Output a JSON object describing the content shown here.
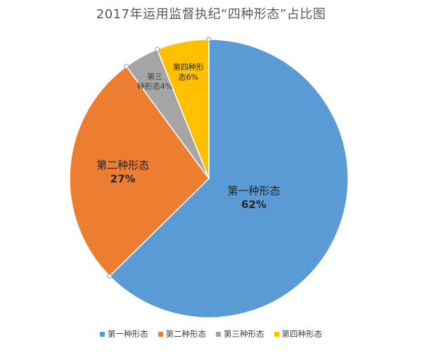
{
  "chart_data": {
    "type": "pie",
    "title": "2017年运用监督执纪“四种形态”占比图",
    "categories": [
      "第一种形态",
      "第二种形态",
      "第三种形态",
      "第四种形态"
    ],
    "values": [
      62,
      27,
      4,
      6
    ],
    "value_labels": [
      "62%",
      "27%",
      "4%",
      "6%"
    ],
    "colors": [
      "#5B9BD5",
      "#ED7D31",
      "#A5A5A5",
      "#FFC000"
    ],
    "legend_position": "bottom",
    "start_angle_deg": 0,
    "direction": "clockwise"
  }
}
